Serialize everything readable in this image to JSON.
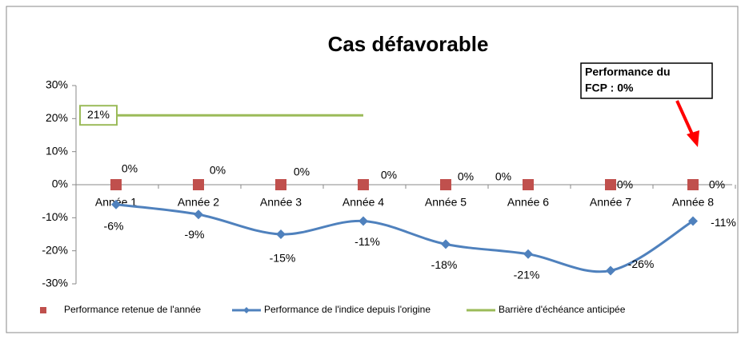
{
  "chart_data": {
    "type": "line",
    "title": "Cas défavorable",
    "categories": [
      "Année 1",
      "Année 2",
      "Année 3",
      "Année 4",
      "Année 5",
      "Année 6",
      "Année 7",
      "Année 8"
    ],
    "series": [
      {
        "name": "Performance retenue de l'année",
        "color": "#c0504d",
        "marker": "square",
        "values": [
          0,
          0,
          0,
          0,
          0,
          0,
          0,
          0
        ],
        "value_labels": [
          "0%",
          "0%",
          "0%",
          "0%",
          "0%",
          "0%",
          "0%",
          "0%"
        ]
      },
      {
        "name": "Performance de l'indice depuis l'origine",
        "color": "#4f81bd",
        "marker": "diamond",
        "smooth": true,
        "values": [
          -6,
          -9,
          -15,
          -11,
          -18,
          -21,
          -26,
          -11
        ],
        "value_labels": [
          "-6%",
          "-9%",
          "-15%",
          "-11%",
          "-18%",
          "-21%",
          "-26%",
          "-11%"
        ]
      },
      {
        "name": "Barrière d'échéance anticipée",
        "color": "#9bbb59",
        "marker": "none",
        "values": [
          21,
          21,
          21,
          21,
          null,
          null,
          null,
          null
        ],
        "value_labels": [
          "21%",
          null,
          null,
          null,
          null,
          null,
          null,
          null
        ]
      }
    ],
    "ylim": [
      -30,
      30
    ],
    "yticks": [
      {
        "value": -30,
        "label": "-30%"
      },
      {
        "value": -20,
        "label": "-20%"
      },
      {
        "value": -10,
        "label": "-10%"
      },
      {
        "value": 0,
        "label": "0%"
      },
      {
        "value": 10,
        "label": "10%"
      },
      {
        "value": 20,
        "label": "20%"
      },
      {
        "value": 30,
        "label": "30%"
      }
    ],
    "annotation": [
      "Performance du",
      "FCP : 0%"
    ],
    "legend": "bottom"
  }
}
